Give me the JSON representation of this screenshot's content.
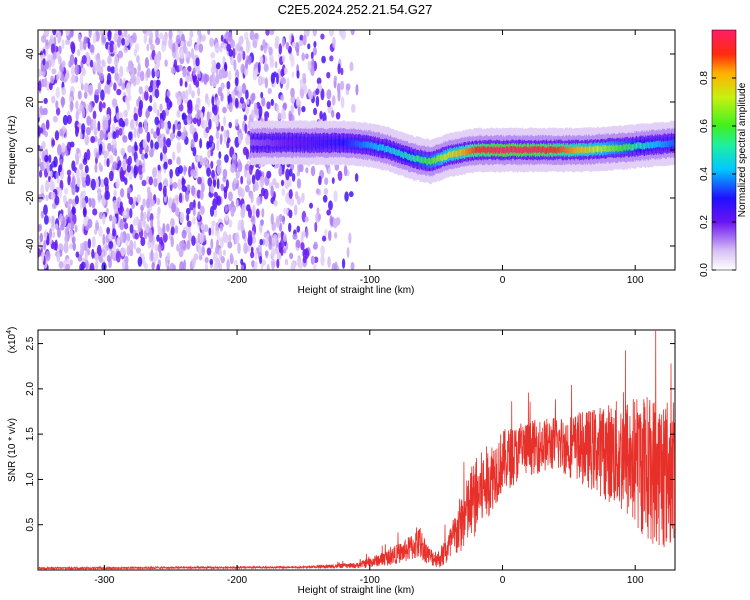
{
  "title": "C2E5.2024.252.21.54.G27",
  "chart_data": [
    {
      "type": "heatmap",
      "xlabel": "Height of straight line (km)",
      "ylabel": "Frequency (Hz)",
      "xlim": [
        -350,
        130
      ],
      "ylim": [
        -50,
        50
      ],
      "x_ticks": [
        -300,
        -200,
        -100,
        0,
        100
      ],
      "x_tick_labels": [
        "-300",
        "-200",
        "-100",
        "0",
        "100"
      ],
      "y_ticks": [
        -40,
        -20,
        0,
        20,
        40
      ],
      "y_tick_labels": [
        "-40",
        "-20",
        "0",
        "20",
        "40"
      ],
      "colorbar": {
        "label": "Normalized spectral amplitude",
        "range": [
          0,
          1
        ],
        "ticks": [
          0.0,
          0.2,
          0.4,
          0.6,
          0.8
        ],
        "tick_labels": [
          "0.0",
          "0.2",
          "0.4",
          "0.6",
          "0.8"
        ],
        "colors": [
          "#ffffff",
          "#c9a8f0",
          "#7a1cf0",
          "#2c10ff",
          "#00c8ff",
          "#33e87a",
          "#9cf02c",
          "#ffd000",
          "#ff3a1a",
          "#ff2060"
        ]
      },
      "signal_track": [
        {
          "x": -190,
          "freq": 3,
          "amp": 0.15
        },
        {
          "x": -150,
          "freq": 3,
          "amp": 0.22
        },
        {
          "x": -120,
          "freq": 3,
          "amp": 0.3
        },
        {
          "x": -100,
          "freq": 2,
          "amp": 0.4
        },
        {
          "x": -85,
          "freq": 0,
          "amp": 0.45
        },
        {
          "x": -70,
          "freq": -3,
          "amp": 0.5
        },
        {
          "x": -55,
          "freq": -5,
          "amp": 0.6
        },
        {
          "x": -40,
          "freq": -2,
          "amp": 0.75
        },
        {
          "x": -20,
          "freq": 0,
          "amp": 0.9
        },
        {
          "x": 0,
          "freq": 0,
          "amp": 1.0
        },
        {
          "x": 30,
          "freq": 0,
          "amp": 0.95
        },
        {
          "x": 60,
          "freq": 0,
          "amp": 0.8
        },
        {
          "x": 90,
          "freq": 1,
          "amp": 0.6
        },
        {
          "x": 110,
          "freq": 2,
          "amp": 0.45
        },
        {
          "x": 130,
          "freq": 3,
          "amp": 0.35
        }
      ],
      "noise_region": {
        "x_from": -350,
        "x_to": -115,
        "amp": 0.15
      }
    },
    {
      "type": "line",
      "xlabel": "Height of straight line (km)",
      "ylabel": "SNR (10 * v/v)",
      "multiplier_label": "(x10",
      "multiplier_exp": "4",
      "multiplier_close": ")",
      "xlim": [
        -350,
        130
      ],
      "ylim": [
        0,
        2.65
      ],
      "x_ticks": [
        -300,
        -200,
        -100,
        0,
        100
      ],
      "x_tick_labels": [
        "-300",
        "-200",
        "-100",
        "0",
        "100"
      ],
      "y_ticks": [
        0.5,
        1.0,
        1.5,
        2.0,
        2.5
      ],
      "y_tick_labels": [
        "0.5",
        "1.0",
        "1.5",
        "2.0",
        "2.5"
      ],
      "color": "#e8302a",
      "envelope": {
        "x": [
          -350,
          -150,
          -110,
          -90,
          -75,
          -62,
          -55,
          -48,
          -40,
          -30,
          -20,
          -10,
          0,
          20,
          40,
          60,
          80,
          100,
          115,
          130
        ],
        "mean": [
          0.02,
          0.03,
          0.05,
          0.12,
          0.2,
          0.3,
          0.15,
          0.12,
          0.25,
          0.55,
          0.8,
          1.0,
          1.2,
          1.35,
          1.4,
          1.35,
          1.3,
          1.2,
          1.1,
          1.05
        ],
        "spread": [
          0.01,
          0.01,
          0.03,
          0.08,
          0.12,
          0.18,
          0.1,
          0.1,
          0.2,
          0.35,
          0.45,
          0.4,
          0.35,
          0.3,
          0.3,
          0.4,
          0.55,
          0.75,
          0.85,
          0.85
        ]
      }
    }
  ]
}
